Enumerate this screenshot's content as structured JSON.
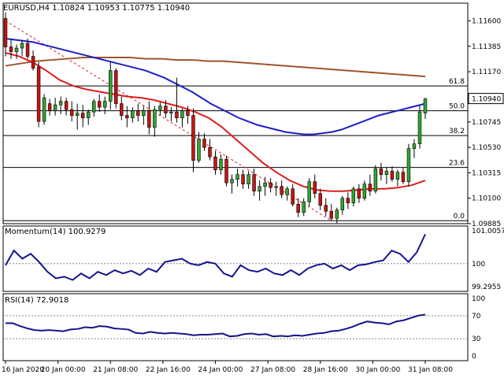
{
  "header": {
    "symbol": "EURUSD,H4",
    "ohlc": "1.10824 1.10953 1.10775 1.10940"
  },
  "indicators": {
    "momentum_label": "Momentum(14) 100.9279",
    "rsi_label": "RSI(14) 72.9018"
  },
  "colors": {
    "bull": "#32a532",
    "bear": "#c81414",
    "sma_blue": "#1e1ec8",
    "sma_brown": "#a0522d",
    "sma_red": "#dc1e1e",
    "fib_line": "#000000",
    "trend_line": "#dc1e1e",
    "price_tag_bg": "#ffffff",
    "indicator_line": "#14148c"
  },
  "chart_data": [
    {
      "type": "candlestick",
      "title": "EURUSD,H4",
      "ylim": [
        1.09885,
        1.1175
      ],
      "price_ticks": [
        "1.11600",
        "1.11385",
        "1.11170",
        "1.10940",
        "1.10745",
        "1.10530",
        "1.10315",
        "1.10100",
        "1.09885"
      ],
      "current_price": "1.10940",
      "fibonacci_levels": [
        {
          "label": "61.8",
          "price": 1.1105
        },
        {
          "label": "50.0",
          "price": 1.1084
        },
        {
          "label": "38.2",
          "price": 1.1063
        },
        {
          "label": "23.6",
          "price": 1.1036
        },
        {
          "label": "0.0",
          "price": 1.0991
        }
      ],
      "candles": [
        [
          1.1162,
          1.1167,
          1.113,
          1.1138
        ],
        [
          1.1138,
          1.1145,
          1.1128,
          1.1134
        ],
        [
          1.1134,
          1.114,
          1.1128,
          1.1137
        ],
        [
          1.1137,
          1.1144,
          1.113,
          1.1141
        ],
        [
          1.1141,
          1.1145,
          1.1128,
          1.113
        ],
        [
          1.113,
          1.1135,
          1.1118,
          1.112
        ],
        [
          1.1121,
          1.1125,
          1.107,
          1.1075
        ],
        [
          1.1075,
          1.1098,
          1.1072,
          1.1095
        ],
        [
          1.109,
          1.1094,
          1.108,
          1.1084
        ],
        [
          1.1084,
          1.1095,
          1.108,
          1.1089
        ],
        [
          1.1089,
          1.1096,
          1.1081,
          1.1092
        ],
        [
          1.1092,
          1.1095,
          1.108,
          1.1085
        ],
        [
          1.1085,
          1.1092,
          1.1075,
          1.108
        ],
        [
          1.108,
          1.109,
          1.1068,
          1.1082
        ],
        [
          1.1082,
          1.1089,
          1.107,
          1.1078
        ],
        [
          1.1078,
          1.1085,
          1.1072,
          1.1083
        ],
        [
          1.1083,
          1.1094,
          1.1079,
          1.1092
        ],
        [
          1.1092,
          1.1098,
          1.1083,
          1.1087
        ],
        [
          1.1087,
          1.1096,
          1.1081,
          1.1092
        ],
        [
          1.1092,
          1.1125,
          1.1085,
          1.1118
        ],
        [
          1.1118,
          1.112,
          1.1086,
          1.109
        ],
        [
          1.109,
          1.1096,
          1.1076,
          1.108
        ],
        [
          1.108,
          1.1088,
          1.107,
          1.1078
        ],
        [
          1.1078,
          1.1087,
          1.1074,
          1.1084
        ],
        [
          1.1084,
          1.109,
          1.1075,
          1.108
        ],
        [
          1.108,
          1.1088,
          1.1072,
          1.1084
        ],
        [
          1.1084,
          1.1092,
          1.1064,
          1.107
        ],
        [
          1.107,
          1.1088,
          1.1062,
          1.1085
        ],
        [
          1.1085,
          1.1091,
          1.108,
          1.1088
        ],
        [
          1.1088,
          1.1093,
          1.1078,
          1.1082
        ],
        [
          1.1082,
          1.1087,
          1.1075,
          1.1083
        ],
        [
          1.1083,
          1.1112,
          1.1074,
          1.1078
        ],
        [
          1.1078,
          1.1086,
          1.107,
          1.1084
        ],
        [
          1.1084,
          1.1088,
          1.1073,
          1.108
        ],
        [
          1.108,
          1.1086,
          1.1032,
          1.1042
        ],
        [
          1.1042,
          1.1066,
          1.104,
          1.106
        ],
        [
          1.106,
          1.1065,
          1.105,
          1.1053
        ],
        [
          1.1053,
          1.106,
          1.1042,
          1.1045
        ],
        [
          1.1045,
          1.105,
          1.103,
          1.1034
        ],
        [
          1.1034,
          1.1047,
          1.103,
          1.1043
        ],
        [
          1.1043,
          1.1046,
          1.102,
          1.1023
        ],
        [
          1.1023,
          1.103,
          1.1014,
          1.1026
        ],
        [
          1.1026,
          1.1035,
          1.102,
          1.103
        ],
        [
          1.103,
          1.1034,
          1.1018,
          1.1022
        ],
        [
          1.1022,
          1.1033,
          1.1018,
          1.103
        ],
        [
          1.103,
          1.1035,
          1.1012,
          1.1016
        ],
        [
          1.1016,
          1.1025,
          1.1008,
          1.102
        ],
        [
          1.102,
          1.1028,
          1.1012,
          1.1023
        ],
        [
          1.1023,
          1.1027,
          1.1015,
          1.1019
        ],
        [
          1.1019,
          1.1024,
          1.1012,
          1.102
        ],
        [
          1.102,
          1.1025,
          1.101,
          1.1013
        ],
        [
          1.1013,
          1.102,
          1.1008,
          1.1018
        ],
        [
          1.1018,
          1.1022,
          1.1003,
          1.1005
        ],
        [
          1.1005,
          1.101,
          1.0994,
          1.0998
        ],
        [
          1.0998,
          1.101,
          1.0995,
          1.1007
        ],
        [
          1.1007,
          1.1027,
          1.1003,
          1.1024
        ],
        [
          1.1024,
          1.103,
          1.101,
          1.1014
        ],
        [
          1.1014,
          1.1018,
          1.1,
          1.1004
        ],
        [
          1.1004,
          1.101,
          1.0995,
          1.0999
        ],
        [
          1.0999,
          1.1005,
          1.0991,
          1.0993
        ],
        [
          1.0993,
          1.1002,
          1.0989,
          1.1
        ],
        [
          1.1,
          1.1012,
          1.0996,
          1.101
        ],
        [
          1.101,
          1.1015,
          1.1001,
          1.1006
        ],
        [
          1.1006,
          1.102,
          1.1003,
          1.1018
        ],
        [
          1.1018,
          1.1022,
          1.1006,
          1.101
        ],
        [
          1.101,
          1.1025,
          1.1008,
          1.1022
        ],
        [
          1.1022,
          1.103,
          1.1012,
          1.1016
        ],
        [
          1.1016,
          1.1038,
          1.1014,
          1.1035
        ],
        [
          1.1035,
          1.104,
          1.1025,
          1.103
        ],
        [
          1.103,
          1.1036,
          1.1022,
          1.1033
        ],
        [
          1.1033,
          1.1037,
          1.1024,
          1.1026
        ],
        [
          1.1026,
          1.1034,
          1.102,
          1.1032
        ],
        [
          1.1032,
          1.1036,
          1.1022,
          1.1024
        ],
        [
          1.1024,
          1.1056,
          1.102,
          1.1052
        ],
        [
          1.1052,
          1.106,
          1.1044,
          1.1056
        ],
        [
          1.1056,
          1.1088,
          1.1052,
          1.1083
        ],
        [
          1.1082,
          1.1095,
          1.1077,
          1.1094
        ]
      ],
      "sma_blue": [
        1.1145,
        1.1144,
        1.1143,
        1.1142,
        1.114,
        1.1138,
        1.1136,
        1.1134,
        1.1132,
        1.113,
        1.1128,
        1.1126,
        1.1124,
        1.1122,
        1.112,
        1.1118,
        1.1115,
        1.1112,
        1.1108,
        1.1104,
        1.11,
        1.1095,
        1.109,
        1.1086,
        1.1082,
        1.1078,
        1.1075,
        1.1072,
        1.107,
        1.1068,
        1.1066,
        1.1065,
        1.1064,
        1.1064,
        1.1065,
        1.1066,
        1.1068,
        1.1071,
        1.1074,
        1.1077,
        1.108,
        1.1082,
        1.1084,
        1.1086,
        1.1088,
        1.109
      ],
      "sma_brown": [
        1.1122,
        1.1124,
        1.1126,
        1.1127,
        1.1128,
        1.1129,
        1.1129,
        1.1129,
        1.1129,
        1.1128,
        1.1128,
        1.1127,
        1.1127,
        1.1126,
        1.1126,
        1.1125,
        1.1124,
        1.1123,
        1.1122,
        1.1121,
        1.112,
        1.1119,
        1.1118,
        1.1117,
        1.1116,
        1.1115,
        1.1114,
        1.1113
      ],
      "sma_red": [
        1.1133,
        1.113,
        1.1125,
        1.1118,
        1.111,
        1.1105,
        1.1102,
        1.11,
        1.1098,
        1.1096,
        1.1095,
        1.1093,
        1.109,
        1.1087,
        1.1083,
        1.1078,
        1.107,
        1.106,
        1.105,
        1.104,
        1.1032,
        1.1025,
        1.102,
        1.1017,
        1.1016,
        1.1016,
        1.1017,
        1.1018,
        1.1018,
        1.1019,
        1.1021,
        1.1025
      ],
      "trend_line": [
        1.116,
        1.0991
      ]
    },
    {
      "type": "line",
      "title": "Momentum(14) 100.9279",
      "ylim": [
        99.2955,
        101.0057
      ],
      "ticks": [
        "101.0057",
        "100",
        "99.2955"
      ],
      "level": 100,
      "values": [
        99.95,
        100.4,
        100.15,
        100.3,
        100.05,
        99.75,
        99.55,
        99.6,
        99.5,
        99.7,
        99.55,
        99.75,
        99.65,
        99.8,
        99.7,
        99.78,
        99.65,
        99.85,
        99.75,
        100.05,
        100.1,
        100.15,
        100.0,
        99.95,
        100.05,
        100.0,
        99.7,
        99.6,
        99.95,
        99.8,
        99.75,
        99.85,
        99.7,
        99.65,
        99.8,
        99.65,
        99.85,
        99.95,
        100.0,
        99.85,
        99.95,
        99.8,
        99.95,
        99.98,
        100.05,
        100.1,
        100.4,
        100.3,
        100.05,
        100.35,
        100.9
      ]
    },
    {
      "type": "line",
      "title": "RSI(14) 72.9018",
      "ylim": [
        0,
        100
      ],
      "ticks": [
        "100",
        "70",
        "30",
        "0"
      ],
      "levels": [
        70,
        30
      ],
      "values": [
        57,
        57,
        52,
        48,
        45,
        44,
        45,
        44,
        43,
        46,
        47,
        50,
        49,
        52,
        51,
        48,
        47,
        46,
        40,
        39,
        42,
        40,
        39,
        40,
        39,
        38,
        36,
        37,
        37,
        38,
        39,
        34,
        35,
        38,
        39,
        37,
        38,
        34,
        35,
        34,
        36,
        35,
        37,
        39,
        40,
        43,
        44,
        47,
        51,
        56,
        60,
        58,
        57,
        55,
        60,
        62,
        66,
        70,
        72
      ]
    }
  ],
  "time_axis": [
    "16 Jan 2020",
    "20 Jan 00:00",
    "21 Jan 08:00",
    "22 Jan 16:00",
    "24 Jan 00:00",
    "27 Jan 08:00",
    "28 Jan 16:00",
    "30 Jan 00:00",
    "31 Jan 08:00"
  ]
}
